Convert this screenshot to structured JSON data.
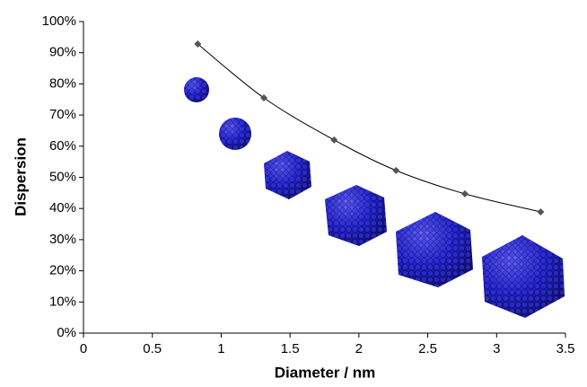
{
  "chart_data": {
    "type": "line",
    "x_label": "Diameter / nm",
    "y_label": "Dispersion",
    "x": [
      0.83,
      1.31,
      1.82,
      2.27,
      2.77,
      3.32
    ],
    "series": [
      {
        "color": "#555555",
        "values": [
          92.8,
          75.5,
          62,
          52.2,
          44.7,
          38.9
        ]
      }
    ],
    "xlim": [
      0,
      3.5
    ],
    "xticks": [
      0,
      0.5,
      1,
      1.5,
      2,
      2.5,
      3,
      3.5
    ],
    "ylim": [
      0,
      100
    ],
    "yticks": [
      {
        "value": 0,
        "label": "0%"
      },
      {
        "value": 10,
        "label": "10%"
      },
      {
        "value": 20,
        "label": "20%"
      },
      {
        "value": 30,
        "label": "30%"
      },
      {
        "value": 40,
        "label": "40%"
      },
      {
        "value": 50,
        "label": "50%"
      },
      {
        "value": 60,
        "label": "60%"
      },
      {
        "value": 70,
        "label": "70%"
      },
      {
        "value": 80,
        "label": "80%"
      },
      {
        "value": 90,
        "label": "90%"
      },
      {
        "value": 100,
        "label": "100%"
      }
    ]
  }
}
